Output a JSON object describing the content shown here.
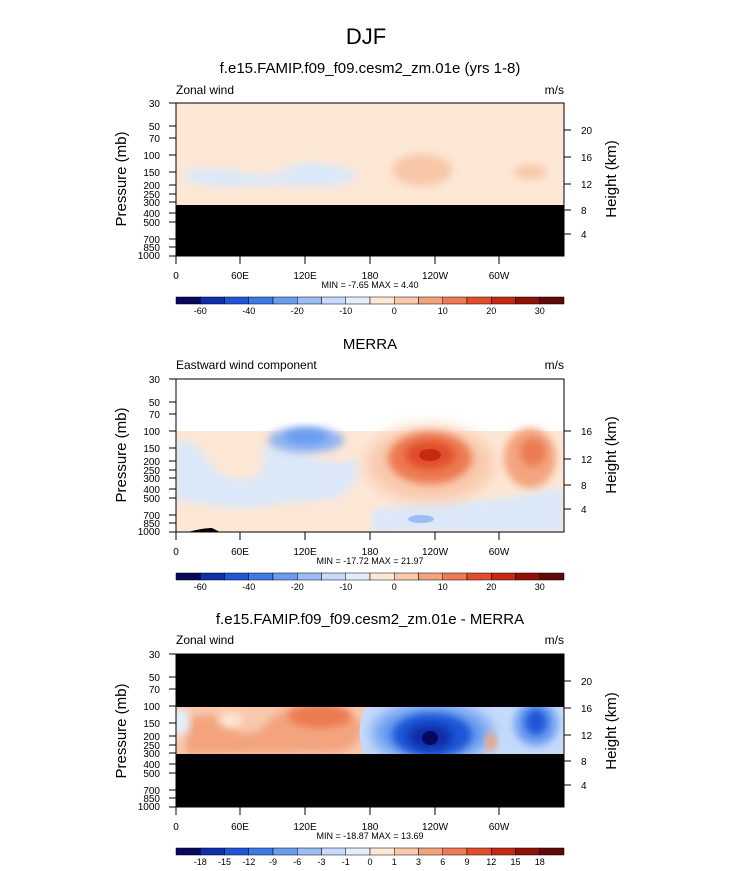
{
  "figure": {
    "title": "DJF"
  },
  "chart_data": [
    {
      "type": "heatmap",
      "title": "f.e15.FAMIP.f09_f09.cesm2_zm.01e (yrs 1-8)",
      "left_label": "Zonal wind",
      "right_label": "m/s",
      "ylabel": "Pressure (mb)",
      "y2label": "Height (km)",
      "x_ticks": [
        "0",
        "60E",
        "120E",
        "180",
        "120W",
        "60W"
      ],
      "y_ticks": [
        "30",
        "50",
        "70",
        "100",
        "150",
        "200",
        "250",
        "300",
        "400",
        "500",
        "700",
        "850",
        "1000"
      ],
      "height_ticks": [
        "20",
        "16",
        "12",
        "8",
        "4"
      ],
      "stats": "MIN = -7.65  MAX =  4.40",
      "colorbar": {
        "labels": [
          "-60",
          "-40",
          "-20",
          "-10",
          "0",
          "10",
          "20",
          "30"
        ],
        "colors": [
          "#08085e",
          "#0f2fa8",
          "#1f55d6",
          "#3e7ae6",
          "#6b9cf0",
          "#9bbcf5",
          "#c6dbfa",
          "#e4eefb",
          "#fde7d5",
          "#f9c9ad",
          "#f3a47f",
          "#ec7a52",
          "#e24e2c",
          "#c42a14",
          "#8f1108",
          "#5e0a05"
        ]
      },
      "masked_ranges_mb": [
        [
          300,
          1000
        ]
      ],
      "ylim_mb": [
        30,
        1000
      ],
      "xlim_deg": [
        0,
        360
      ]
    },
    {
      "type": "heatmap",
      "title": "MERRA",
      "left_label": "Eastward wind component",
      "right_label": "m/s",
      "ylabel": "Pressure (mb)",
      "y2label": "Height (km)",
      "x_ticks": [
        "0",
        "60E",
        "120E",
        "180",
        "120W",
        "60W"
      ],
      "y_ticks": [
        "30",
        "50",
        "70",
        "100",
        "150",
        "200",
        "250",
        "300",
        "400",
        "500",
        "700",
        "850",
        "1000"
      ],
      "height_ticks": [
        "16",
        "12",
        "8",
        "4"
      ],
      "stats": "MIN = -17.72  MAX = 21.97",
      "colorbar": {
        "labels": [
          "-60",
          "-40",
          "-20",
          "-10",
          "0",
          "10",
          "20",
          "30"
        ],
        "colors": [
          "#08085e",
          "#0f2fa8",
          "#1f55d6",
          "#3e7ae6",
          "#6b9cf0",
          "#9bbcf5",
          "#c6dbfa",
          "#e4eefb",
          "#fde7d5",
          "#f9c9ad",
          "#f3a47f",
          "#ec7a52",
          "#e24e2c",
          "#c42a14",
          "#8f1108",
          "#5e0a05"
        ]
      },
      "masked_ranges_mb": [],
      "ylim_mb": [
        30,
        1000
      ],
      "xlim_deg": [
        0,
        360
      ]
    },
    {
      "type": "heatmap",
      "title": "f.e15.FAMIP.f09_f09.cesm2_zm.01e - MERRA",
      "left_label": "Zonal wind",
      "right_label": "m/s",
      "ylabel": "Pressure (mb)",
      "y2label": "Height (km)",
      "x_ticks": [
        "0",
        "60E",
        "120E",
        "180",
        "120W",
        "60W"
      ],
      "y_ticks": [
        "30",
        "50",
        "70",
        "100",
        "150",
        "200",
        "250",
        "300",
        "400",
        "500",
        "700",
        "850",
        "1000"
      ],
      "height_ticks": [
        "20",
        "16",
        "12",
        "8",
        "4"
      ],
      "stats": "MIN = -18.87  MAX = 13.69",
      "colorbar": {
        "labels": [
          "-18",
          "-15",
          "-12",
          "-9",
          "-6",
          "-3",
          "-1",
          "0",
          "1",
          "3",
          "6",
          "9",
          "12",
          "15",
          "18"
        ],
        "colors": [
          "#08085e",
          "#0f2fa8",
          "#1f55d6",
          "#3e7ae6",
          "#6b9cf0",
          "#9bbcf5",
          "#c6dbfa",
          "#e4eefb",
          "#fde7d5",
          "#f9c9ad",
          "#f3a47f",
          "#ec7a52",
          "#e24e2c",
          "#c42a14",
          "#8f1108",
          "#5e0a05"
        ]
      },
      "masked_ranges_mb": [
        [
          30,
          100
        ],
        [
          300,
          1000
        ]
      ],
      "ylim_mb": [
        30,
        1000
      ],
      "xlim_deg": [
        0,
        360
      ]
    }
  ]
}
